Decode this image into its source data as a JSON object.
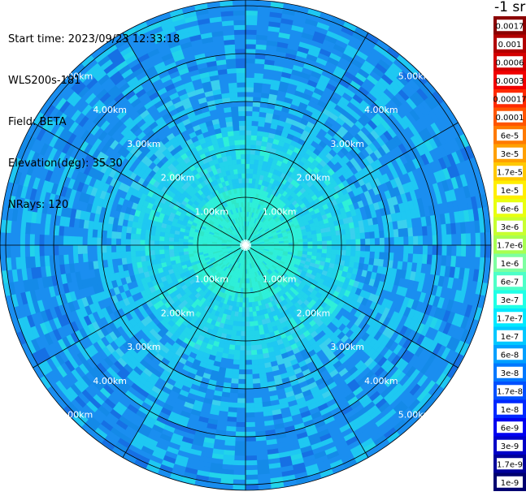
{
  "info": {
    "start_time": "Start time: 2023/09/23 12:33:18",
    "instrument": "WLS200s-181",
    "field": "Field: BETA",
    "elevation": "Elevation(deg): 35.30",
    "nrays": "NRays: 120"
  },
  "colorbar": {
    "unit": "-1 sr",
    "labels": [
      "0.0017",
      "0.001",
      "0.0006",
      "0.0003",
      "0.00017",
      "0.0001",
      "6e-5",
      "3e-5",
      "1.7e-5",
      "1e-5",
      "6e-6",
      "3e-6",
      "1.7e-6",
      "1e-6",
      "6e-7",
      "3e-7",
      "1.7e-7",
      "1e-7",
      "6e-8",
      "3e-8",
      "1.7e-8",
      "1e-8",
      "6e-9",
      "3e-9",
      "1.7e-9",
      "1e-9"
    ],
    "colors": [
      "#8b0000",
      "#b20000",
      "#d40000",
      "#f00000",
      "#ff2a00",
      "#ff5500",
      "#ff7a00",
      "#ffa000",
      "#ffc800",
      "#ffee00",
      "#e8ff10",
      "#c8ff30",
      "#a8ff50",
      "#7dffa0",
      "#4dffc8",
      "#20ffe6",
      "#00e8ff",
      "#00c8ff",
      "#00a0ff",
      "#0078ff",
      "#0050ff",
      "#0028ff",
      "#0000f0",
      "#0000c8",
      "#00009a",
      "#000070"
    ]
  },
  "range_labels": [
    "1.00km",
    "2.00km",
    "3.00km",
    "4.00km",
    "5.00km"
  ],
  "plot": {
    "rings_km": [
      1,
      2,
      3,
      4,
      5,
      5.6
    ],
    "max_range_km": 5.1,
    "spokes_deg": [
      0,
      30,
      60,
      90,
      120,
      150,
      180,
      210,
      240,
      270,
      300,
      330
    ],
    "n_rays": 120,
    "gate_km": 0.1
  },
  "colors": {
    "field_core": "#2ef0d8",
    "field_mid": "#1ec8f2",
    "field_outer": "#1a8ef0",
    "grid": "#000000",
    "label": "#ffffff"
  }
}
